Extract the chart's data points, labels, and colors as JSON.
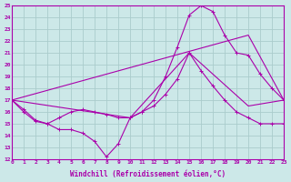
{
  "xlabel": "Windchill (Refroidissement éolien,°C)",
  "xlim": [
    0,
    23
  ],
  "ylim": [
    12,
    25
  ],
  "xticks": [
    0,
    1,
    2,
    3,
    4,
    5,
    6,
    7,
    8,
    9,
    10,
    11,
    12,
    13,
    14,
    15,
    16,
    17,
    18,
    19,
    20,
    21,
    22,
    23
  ],
  "yticks": [
    12,
    13,
    14,
    15,
    16,
    17,
    18,
    19,
    20,
    21,
    22,
    23,
    24,
    25
  ],
  "bg_color": "#cce8e8",
  "grid_color": "#aacccc",
  "line_color": "#aa00aa",
  "line1_x": [
    0,
    1,
    2,
    3,
    4,
    5,
    6,
    7,
    8,
    9,
    10,
    11,
    12,
    13,
    14,
    15,
    16,
    17,
    18,
    19,
    20,
    21,
    22,
    23
  ],
  "line1_y": [
    17,
    16.2,
    15.3,
    15.0,
    15.5,
    16.0,
    16.2,
    16.0,
    15.8,
    15.5,
    15.5,
    16.0,
    17.0,
    19.0,
    21.5,
    24.2,
    25.0,
    24.5,
    22.5,
    21.0,
    20.8,
    19.2,
    18.0,
    17.0
  ],
  "line2_x": [
    0,
    1,
    2,
    3,
    4,
    5,
    6,
    7,
    8,
    9,
    10,
    11,
    12,
    13,
    14,
    15,
    16,
    17,
    18,
    19,
    20,
    21,
    22,
    23
  ],
  "line2_y": [
    17,
    16.0,
    15.2,
    15.0,
    14.5,
    14.5,
    14.2,
    13.5,
    12.2,
    13.3,
    15.5,
    16.0,
    16.5,
    17.5,
    18.8,
    21.0,
    19.5,
    18.2,
    17.0,
    16.0,
    15.5,
    15.0,
    15.0,
    15.0
  ],
  "line3_x": [
    0,
    20,
    23
  ],
  "line3_y": [
    17,
    22.5,
    17.0
  ],
  "line4_x": [
    0,
    10,
    15,
    20,
    23
  ],
  "line4_y": [
    17,
    15.5,
    21.0,
    16.5,
    17.0
  ]
}
